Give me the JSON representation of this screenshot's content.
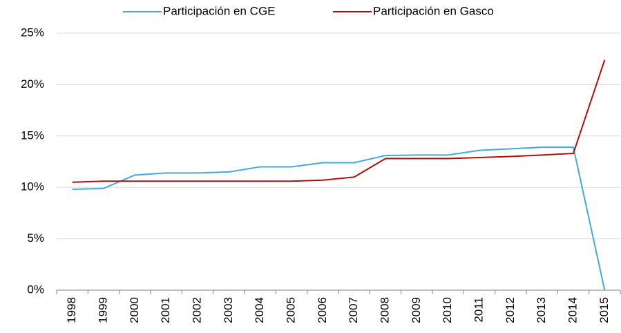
{
  "chart_data": {
    "type": "line",
    "categories": [
      "1998",
      "1999",
      "2000",
      "2001",
      "2002",
      "2003",
      "2004",
      "2005",
      "2006",
      "2007",
      "2008",
      "2009",
      "2010",
      "2011",
      "2012",
      "2013",
      "2014",
      "2015"
    ],
    "series": [
      {
        "name": "Participación en CGE",
        "color": "#41a9e1",
        "values": [
          9.8,
          9.9,
          11.2,
          11.4,
          11.4,
          11.5,
          12.0,
          12.0,
          12.4,
          12.4,
          13.1,
          13.15,
          13.15,
          13.6,
          13.75,
          13.9,
          13.9,
          0
        ]
      },
      {
        "name": "Participación en Gasco",
        "color": "#b00d0d",
        "values": [
          10.5,
          10.6,
          10.6,
          10.6,
          10.6,
          10.6,
          10.6,
          10.6,
          10.7,
          11.0,
          12.8,
          12.8,
          12.8,
          12.9,
          13.0,
          13.15,
          13.3,
          22.4
        ]
      }
    ],
    "ylim": [
      0,
      25
    ],
    "yticks": [
      {
        "value": 0,
        "label": "0%"
      },
      {
        "value": 5,
        "label": "5%"
      },
      {
        "value": 10,
        "label": "10%"
      },
      {
        "value": 15,
        "label": "15%"
      },
      {
        "value": 20,
        "label": "20%"
      },
      {
        "value": 25,
        "label": "25%"
      }
    ],
    "grid": true,
    "legend": "top"
  }
}
